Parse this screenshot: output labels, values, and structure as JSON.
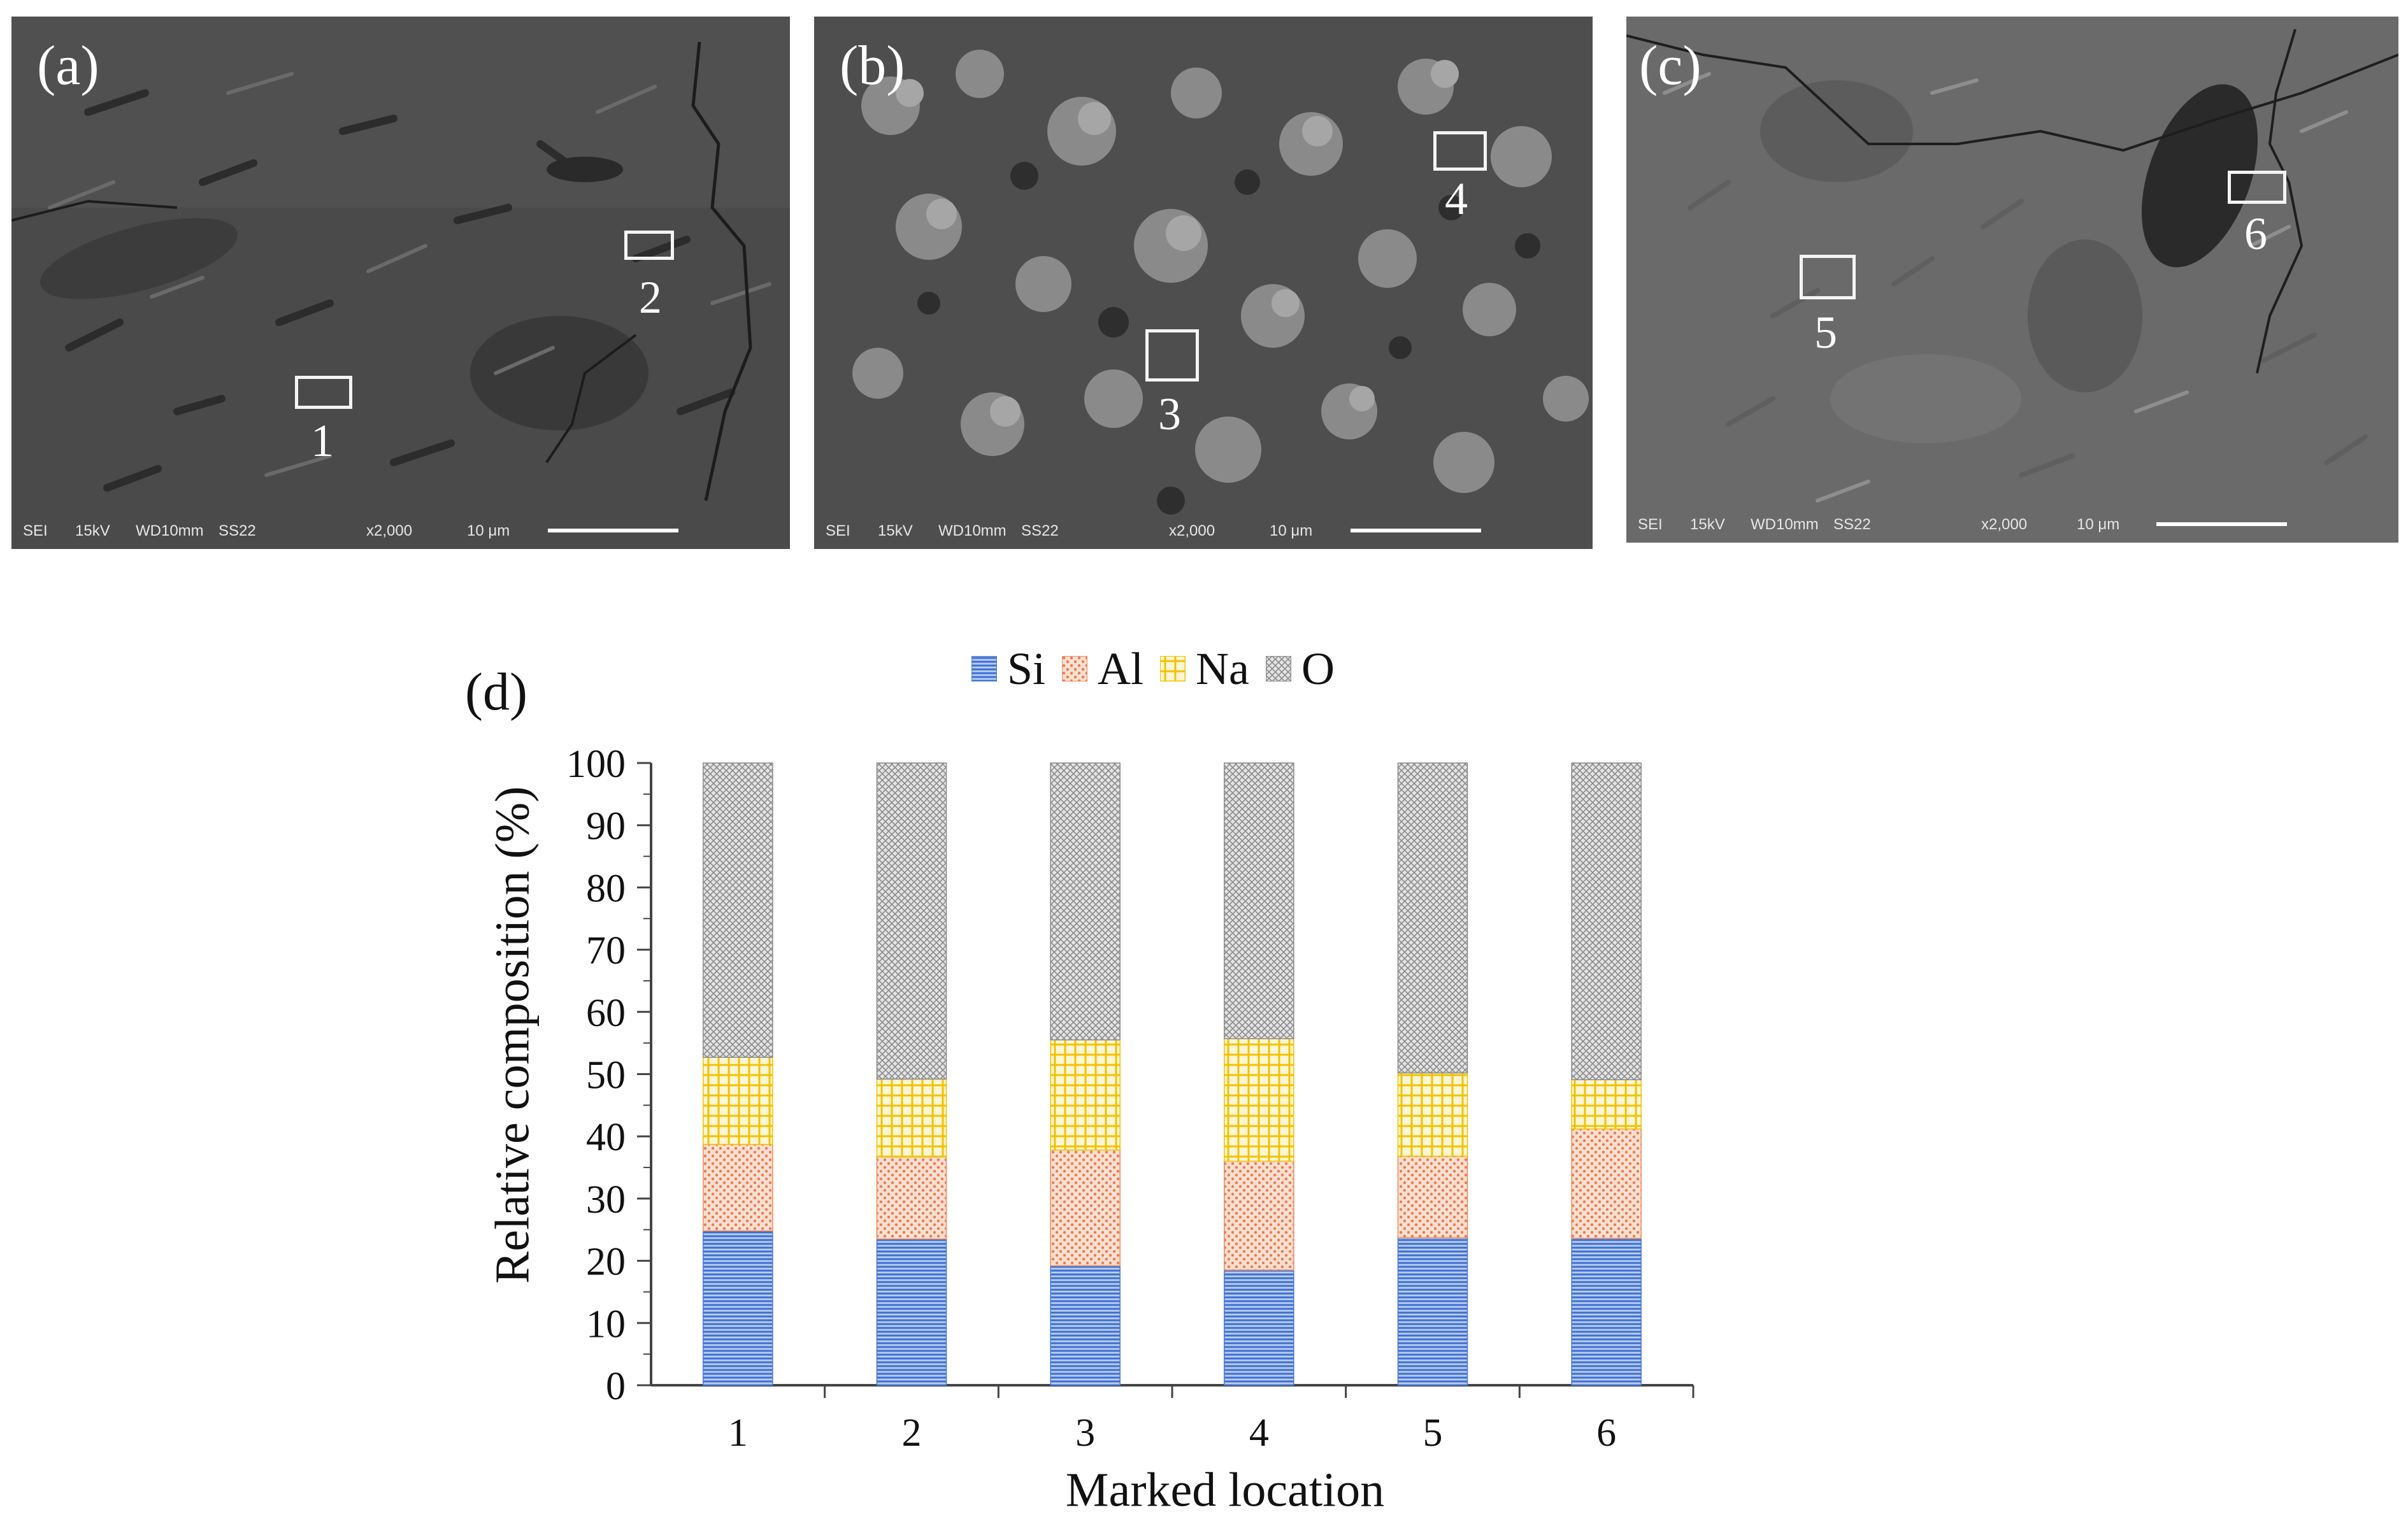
{
  "panels": [
    {
      "label": "(a)",
      "info": {
        "mode": "SEI",
        "kv": "15kV",
        "wd": "WD10mm",
        "ss": "SS22",
        "mag": "x2,000",
        "scale": "10 μm"
      },
      "markers": [
        "1",
        "2"
      ]
    },
    {
      "label": "(b)",
      "info": {
        "mode": "SEI",
        "kv": "15kV",
        "wd": "WD10mm",
        "ss": "SS22",
        "mag": "x2,000",
        "scale": "10 μm"
      },
      "markers": [
        "3",
        "4"
      ]
    },
    {
      "label": "(c)",
      "info": {
        "mode": "SEI",
        "kv": "15kV",
        "wd": "WD10mm",
        "ss": "SS22",
        "mag": "x2,000",
        "scale": "10 μm"
      },
      "markers": [
        "5",
        "6"
      ]
    }
  ],
  "chart_data": {
    "type": "bar",
    "stacked": true,
    "panel_label": "(d)",
    "categories": [
      "1",
      "2",
      "3",
      "4",
      "5",
      "6"
    ],
    "series": [
      {
        "name": "Si",
        "values": [
          24.8,
          23.5,
          19.2,
          18.5,
          23.7,
          23.6
        ],
        "color": "#4a7ad6",
        "pattern": "horizontal-lines"
      },
      {
        "name": "Al",
        "values": [
          13.9,
          13.2,
          18.6,
          17.5,
          13.1,
          17.6
        ],
        "color": "#f08a5d",
        "pattern": "dots"
      },
      {
        "name": "Na",
        "values": [
          14.0,
          12.5,
          17.7,
          19.7,
          13.4,
          7.9
        ],
        "color": "#f2c200",
        "pattern": "grid"
      },
      {
        "name": "O",
        "values": [
          47.3,
          50.8,
          44.5,
          44.3,
          49.8,
          50.9
        ],
        "color": "#8a8a8a",
        "pattern": "crosshatch"
      }
    ],
    "xlabel": "Marked location",
    "ylabel": "Relative composition (%)",
    "ylim": [
      0,
      100
    ],
    "yticks": [
      "0",
      "10",
      "20",
      "30",
      "40",
      "50",
      "60",
      "70",
      "80",
      "90",
      "100"
    ],
    "grid": false,
    "legend": "top-center"
  }
}
